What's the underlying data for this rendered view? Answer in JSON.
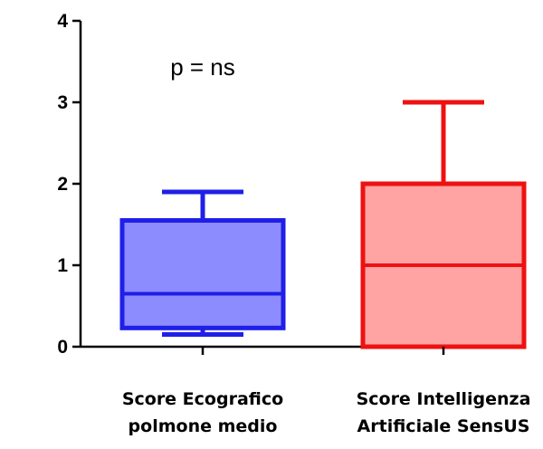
{
  "chart_data": {
    "type": "box",
    "ylim": [
      0,
      4
    ],
    "yticks": [
      "0",
      "1",
      "2",
      "3",
      "4"
    ],
    "annotation": "p = ns",
    "groups": [
      {
        "label_lines": [
          "Score Ecografico",
          "polmone medio"
        ],
        "whisker_min": 0.15,
        "q1": 0.23,
        "median": 0.65,
        "q3": 1.55,
        "whisker_max": 1.9,
        "stroke": "#1f1fe8",
        "fill": "#8c8cff"
      },
      {
        "label_lines": [
          "Score Intelligenza",
          "Artificiale SensUS"
        ],
        "whisker_min": 0.0,
        "q1": 0.0,
        "median": 1.0,
        "q3": 2.0,
        "whisker_max": 3.0,
        "stroke": "#ee1111",
        "fill": "#ffa3a3"
      }
    ]
  }
}
